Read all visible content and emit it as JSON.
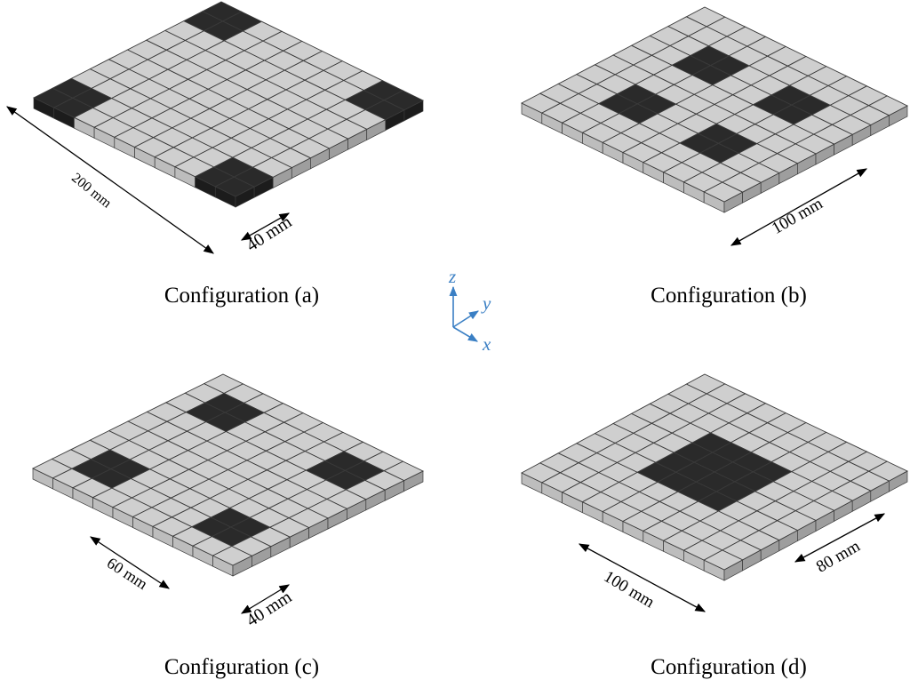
{
  "figure": {
    "panels": [
      {
        "id": "a",
        "caption": "Configuration (a)",
        "patches": [
          [
            0,
            0,
            2,
            2
          ],
          [
            8,
            0,
            2,
            2
          ],
          [
            0,
            8,
            2,
            2
          ],
          [
            8,
            8,
            2,
            2
          ]
        ],
        "dimensions": [
          {
            "label": "200 mm",
            "sc": 0.75
          },
          {
            "label": "40 mm",
            "sc": 0.95
          }
        ]
      },
      {
        "id": "b",
        "caption": "Configuration (b)",
        "patches": [
          [
            2,
            2,
            2,
            2
          ],
          [
            6,
            2,
            2,
            2
          ],
          [
            2,
            6,
            2,
            2
          ],
          [
            6,
            6,
            2,
            2
          ]
        ],
        "dimensions": [
          {
            "label": "100 mm",
            "sc": 0.9
          }
        ]
      },
      {
        "id": "c",
        "caption": "Configuration (c)",
        "patches": [
          [
            1,
            1,
            2,
            2
          ],
          [
            7,
            1,
            2,
            2
          ],
          [
            1,
            7,
            2,
            2
          ],
          [
            7,
            7,
            2,
            2
          ]
        ],
        "dimensions": [
          {
            "label": "60 mm",
            "sc": 0.85
          },
          {
            "label": "40 mm",
            "sc": 0.95
          }
        ]
      },
      {
        "id": "d",
        "caption": "Configuration (d)",
        "patches": [
          [
            3,
            3,
            4,
            4
          ]
        ],
        "dimensions": [
          {
            "label": "100 mm",
            "sc": 0.9
          },
          {
            "label": "80 mm",
            "sc": 0.9
          }
        ]
      }
    ],
    "axes": {
      "x": "x",
      "y": "y",
      "z": "z"
    },
    "colors": {
      "tile_top": "#cfcfcf",
      "tile_side_front": "#bdbdbd",
      "tile_side_right": "#9e9e9e",
      "patch": "#2a2a2a",
      "patch_side": "#1c1c1c",
      "grid_line": "#3a3a3a",
      "triad": "#3a7fc4"
    },
    "grid_size": 10
  }
}
